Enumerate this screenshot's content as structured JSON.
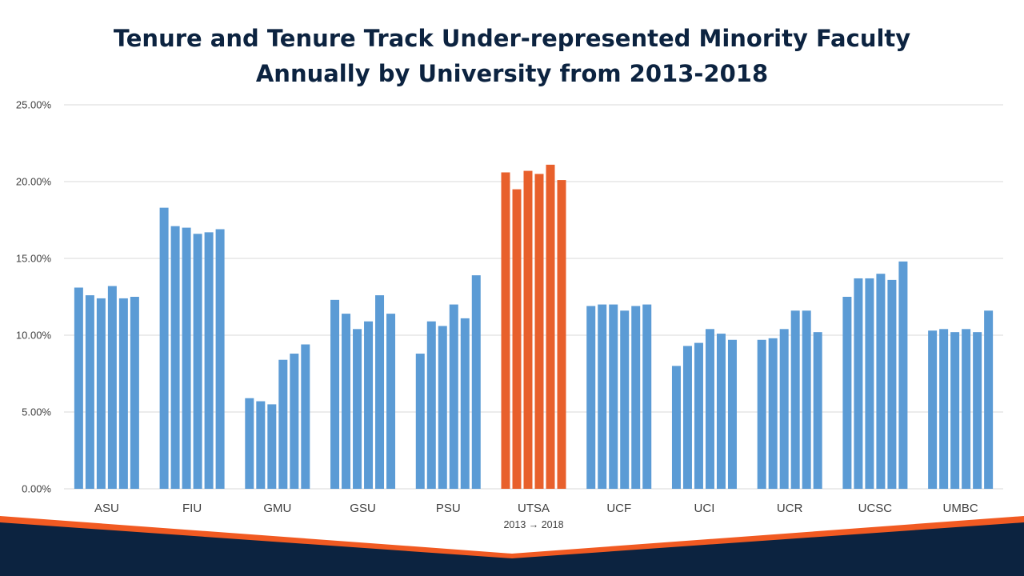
{
  "slide": {
    "title_line1": "Tenure and Tenure Track Under-represented Minority Faculty",
    "title_line2": "Annually by University from 2013-2018"
  },
  "colors": {
    "title": "#0c2340",
    "bar": "#5b9bd5",
    "highlight": "#e8602c",
    "footer_navy": "#0c2340",
    "footer_orange": "#f15a22"
  },
  "chart_data": {
    "type": "bar",
    "title": "Tenure and Tenure Track Under-represented Minority Faculty Annually by University from 2013-2018",
    "xlabel": "",
    "ylabel": "",
    "ylim": [
      0,
      25
    ],
    "ytick_values": [
      0,
      5,
      10,
      15,
      20,
      25
    ],
    "ytick_labels": [
      "0.00%",
      "5.00%",
      "10.00%",
      "15.00%",
      "20.00%",
      "25.00%"
    ],
    "grid": true,
    "categories": [
      "ASU",
      "FIU",
      "GMU",
      "GSU",
      "PSU",
      "UTSA",
      "UCF",
      "UCI",
      "UCR",
      "UCSC",
      "UMBC"
    ],
    "years": [
      "2013",
      "2014",
      "2015",
      "2016",
      "2017",
      "2018"
    ],
    "highlight_category": "UTSA",
    "annotation": "2013 → 2018",
    "values": [
      [
        13.1,
        12.6,
        12.4,
        13.2,
        12.4,
        12.5
      ],
      [
        18.3,
        17.1,
        17.0,
        16.6,
        16.7,
        16.9
      ],
      [
        5.9,
        5.7,
        5.5,
        8.4,
        8.8,
        9.4
      ],
      [
        12.3,
        11.4,
        10.4,
        10.9,
        12.6,
        11.4
      ],
      [
        8.8,
        10.9,
        10.6,
        12.0,
        11.1,
        13.9
      ],
      [
        20.6,
        19.5,
        20.7,
        20.5,
        21.1,
        20.1
      ],
      [
        11.9,
        12.0,
        12.0,
        11.6,
        11.9,
        12.0
      ],
      [
        8.0,
        9.3,
        9.5,
        10.4,
        10.1,
        9.7
      ],
      [
        9.7,
        9.8,
        10.4,
        11.6,
        11.6,
        10.2
      ],
      [
        12.5,
        13.7,
        13.7,
        14.0,
        13.6,
        14.8
      ],
      [
        10.3,
        10.4,
        10.2,
        10.4,
        10.2,
        11.6
      ]
    ]
  }
}
